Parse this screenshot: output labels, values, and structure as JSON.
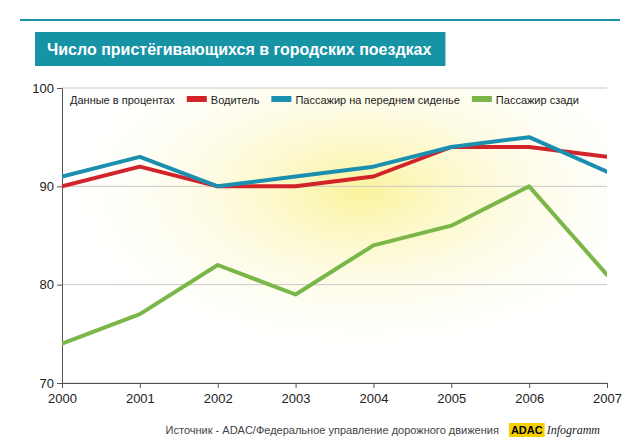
{
  "chart_data": {
    "type": "line",
    "title": "Число пристёгивающихся в городских поездках",
    "annotations": [
      "Данные в процентах",
      "Источник - ADAC/Федеральное управление дорожного движения",
      "ADAC",
      "Infogramm"
    ],
    "x": [
      2000,
      2001,
      2002,
      2003,
      2004,
      2005,
      2006,
      2007
    ],
    "xlim": [
      2000,
      2007
    ],
    "xticks": [
      2000,
      2001,
      2002,
      2003,
      2004,
      2005,
      2006,
      2007
    ],
    "ylim": [
      70,
      100
    ],
    "yticks": [
      70,
      80,
      90,
      100
    ],
    "grid": true,
    "legend": "top-left",
    "series": [
      {
        "name": "Водитель",
        "color": "#d2232a",
        "values": [
          90,
          92,
          90,
          90,
          91,
          94,
          94,
          93
        ]
      },
      {
        "name": "Пассажир на переднем сиденье",
        "color": "#1a8fb0",
        "values": [
          91,
          93,
          90,
          91,
          92,
          94,
          95,
          91.5
        ]
      },
      {
        "name": "Пассажир сзади",
        "color": "#7ab648",
        "values": [
          74,
          77,
          82,
          79,
          84,
          86,
          90,
          81
        ]
      }
    ]
  }
}
